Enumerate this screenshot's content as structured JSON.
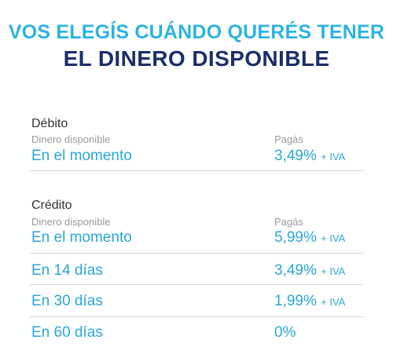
{
  "header": {
    "line1": "VOS ELEGÍS CUÁNDO QUERÉS TENER",
    "line2": "EL DINERO DISPONIBLE"
  },
  "debito": {
    "title": "Débito",
    "col_left": "Dinero disponible",
    "col_right": "Pagás",
    "rows": [
      {
        "when": "En el momento",
        "rate": "3,49%",
        "suffix": "+ IVA"
      }
    ]
  },
  "credito": {
    "title": "Crédito",
    "col_left": "Dinero disponible",
    "col_right": "Pagás",
    "rows": [
      {
        "when": "En el momento",
        "rate": "5,99%",
        "suffix": "+ IVA"
      },
      {
        "when": "En 14 días",
        "rate": "3,49%",
        "suffix": "+ IVA"
      },
      {
        "when": "En 30 días",
        "rate": "1,99%",
        "suffix": "+ IVA"
      },
      {
        "when": "En 60 días",
        "rate": "0%",
        "suffix": ""
      }
    ]
  },
  "colors": {
    "title_light": "#2db3e3",
    "title_dark": "#1b2f6b",
    "row_text": "#2aa8d8",
    "label_gray": "#9a9a9a"
  }
}
